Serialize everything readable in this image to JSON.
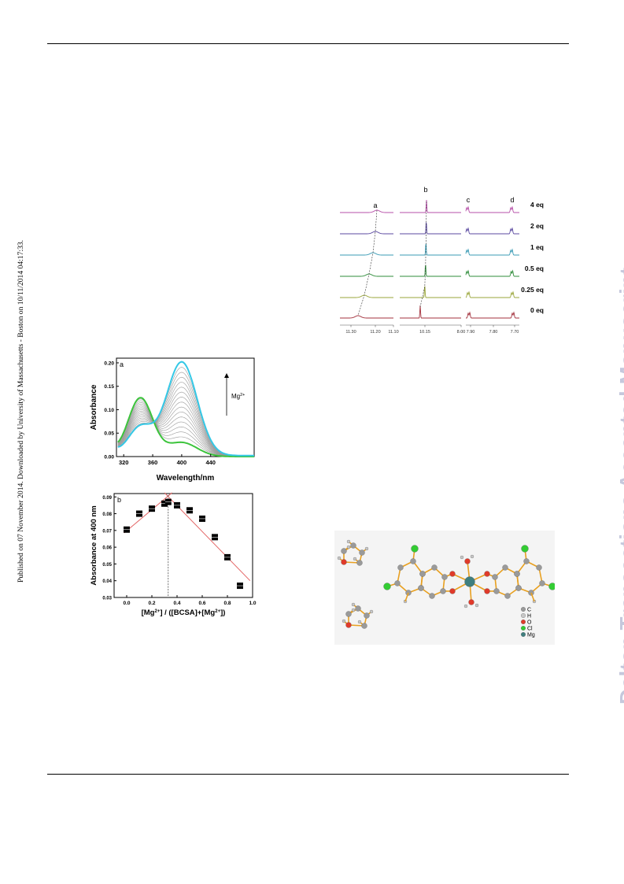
{
  "side_note": "Published on 07 November 2014. Downloaded by University of Massachusetts - Boston on 10/11/2014 04:17:33.",
  "watermark": "Dalton Transactions Accepted Manuscript",
  "nmr": {
    "peak_labels": [
      "a",
      "b",
      "c",
      "d"
    ],
    "eq_labels": [
      "4 eq",
      "2 eq",
      "1 eq",
      "0.5 eq",
      "0.25 eq",
      "0 eq"
    ],
    "ppm_ticks": [
      "11.30",
      "11.20",
      "11.10",
      "10.15",
      "8.00",
      "7.90",
      "7.80",
      "7.70"
    ],
    "colors": [
      "#b64fa8",
      "#5b4aa0",
      "#3a9bb5",
      "#2f8c3a",
      "#9aa63a",
      "#a3303c"
    ]
  },
  "chart_data": [
    {
      "type": "line",
      "panel_label": "a",
      "xlabel": "Wavelength/nm",
      "ylabel": "Absorbance",
      "xlim": [
        310,
        500
      ],
      "ylim": [
        0.0,
        0.21
      ],
      "xticks": [
        320,
        360,
        400,
        440
      ],
      "yticks": [
        0.0,
        0.05,
        0.1,
        0.15,
        0.2
      ],
      "xtick_labels": [
        "320",
        "360",
        "400",
        "440"
      ],
      "ytick_labels": [
        "0.00",
        "0.05",
        "0.10",
        "0.15",
        "0.20"
      ],
      "isosbestic": [
        357,
        0.097
      ],
      "start_curve": {
        "color": "#3cc43c",
        "peak1": [
          343,
          0.125
        ],
        "peak2": [
          400,
          0.03
        ],
        "end": 0.0
      },
      "end_curve": {
        "color": "#34c8e6",
        "peak1": [
          343,
          0.06
        ],
        "peak2": [
          400,
          0.2
        ],
        "end": 0.002
      },
      "intermediate_count": 16,
      "intermediate_color": "#9a9a9a",
      "annotation": "Mg",
      "annotation_sup": "2+"
    },
    {
      "type": "scatter",
      "panel_label": "b",
      "xlabel_parts": [
        "[Mg",
        "2+",
        "] / ([BCSA]+[Mg",
        "2+",
        "])"
      ],
      "ylabel": "Absorbance at 400 nm",
      "xlim": [
        -0.1,
        1.0
      ],
      "ylim": [
        0.03,
        0.092
      ],
      "xticks": [
        0.0,
        0.2,
        0.4,
        0.6,
        0.8,
        1.0
      ],
      "yticks": [
        0.03,
        0.04,
        0.05,
        0.06,
        0.07,
        0.08,
        0.09
      ],
      "xtick_labels": [
        "0.0",
        "0.2",
        "0.4",
        "0.6",
        "0.8",
        "1.0"
      ],
      "ytick_labels": [
        "0.03",
        "0.04",
        "0.05",
        "0.06",
        "0.07",
        "0.08",
        "0.09"
      ],
      "x": [
        0.0,
        0.1,
        0.2,
        0.3,
        0.33,
        0.4,
        0.5,
        0.6,
        0.7,
        0.8,
        0.9
      ],
      "y": [
        0.0705,
        0.08,
        0.083,
        0.086,
        0.087,
        0.085,
        0.082,
        0.077,
        0.066,
        0.054,
        0.037
      ],
      "fit_lines": [
        {
          "x": [
            -0.02,
            0.36
          ],
          "y": [
            0.0685,
            0.0925
          ]
        },
        {
          "x": [
            0.3,
            0.98
          ],
          "y": [
            0.0925,
            0.04
          ]
        }
      ],
      "guide_x": 0.33,
      "line_color": "#e36464"
    }
  ],
  "crystal": {
    "legend": [
      {
        "label": "C",
        "color": "#9a9a9a"
      },
      {
        "label": "H",
        "color": "#c8c8c8"
      },
      {
        "label": "O",
        "color": "#e03a2a"
      },
      {
        "label": "Cl",
        "color": "#33cc33"
      },
      {
        "label": "Mg",
        "color": "#3f7f7f"
      }
    ]
  }
}
